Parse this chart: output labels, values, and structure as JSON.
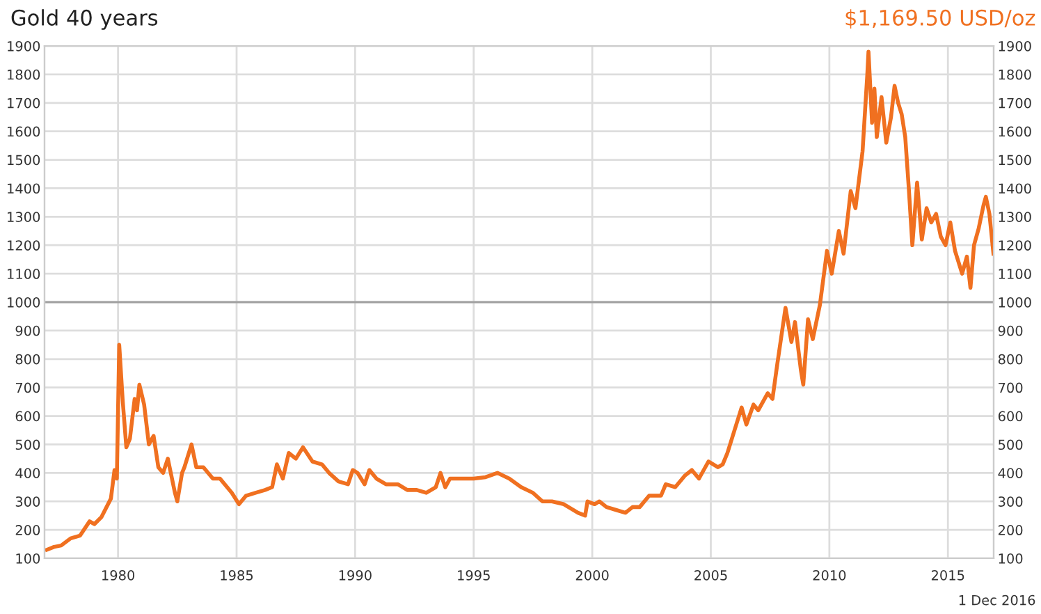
{
  "chart_data": {
    "type": "line",
    "title": "Gold 40 years",
    "annotations": [
      "$1,169.50 USD/oz",
      "1 Dec 2016"
    ],
    "x": [
      1977.0,
      1977.3,
      1977.6,
      1978.0,
      1978.4,
      1978.8,
      1979.0,
      1979.3,
      1979.7,
      1979.85,
      1979.95,
      1980.05,
      1980.2,
      1980.35,
      1980.5,
      1980.7,
      1980.8,
      1980.9,
      1981.1,
      1981.3,
      1981.5,
      1981.7,
      1981.9,
      1982.1,
      1982.4,
      1982.5,
      1982.7,
      1982.8,
      1983.1,
      1983.3,
      1983.6,
      1984.0,
      1984.3,
      1984.8,
      1985.1,
      1985.4,
      1985.8,
      1986.2,
      1986.5,
      1986.7,
      1986.95,
      1987.2,
      1987.5,
      1987.8,
      1988.2,
      1988.6,
      1988.9,
      1989.3,
      1989.7,
      1989.9,
      1990.1,
      1990.4,
      1990.6,
      1990.9,
      1991.3,
      1991.8,
      1992.2,
      1992.6,
      1993.0,
      1993.4,
      1993.6,
      1993.8,
      1994.0,
      1994.6,
      1995.0,
      1995.5,
      1996.0,
      1996.5,
      1997.0,
      1997.5,
      1997.9,
      1998.3,
      1998.8,
      1999.4,
      1999.7,
      1999.8,
      2000.1,
      2000.3,
      2000.6,
      2001.0,
      2001.4,
      2001.7,
      2002.0,
      2002.4,
      2002.9,
      2003.1,
      2003.5,
      2003.9,
      2004.2,
      2004.5,
      2004.9,
      2005.3,
      2005.5,
      2005.7,
      2006.0,
      2006.3,
      2006.5,
      2006.8,
      2007.0,
      2007.4,
      2007.6,
      2007.8,
      2008.15,
      2008.4,
      2008.55,
      2008.8,
      2008.9,
      2009.1,
      2009.3,
      2009.6,
      2009.9,
      2010.1,
      2010.4,
      2010.6,
      2010.9,
      2011.1,
      2011.4,
      2011.6,
      2011.65,
      2011.8,
      2011.9,
      2012.0,
      2012.2,
      2012.4,
      2012.6,
      2012.75,
      2012.9,
      2013.05,
      2013.2,
      2013.35,
      2013.5,
      2013.7,
      2013.9,
      2014.1,
      2014.3,
      2014.5,
      2014.7,
      2014.9,
      2015.1,
      2015.3,
      2015.6,
      2015.8,
      2015.95,
      2016.1,
      2016.3,
      2016.5,
      2016.6,
      2016.75,
      2016.92
    ],
    "series": [
      {
        "color": "#f07020",
        "values": [
          130,
          140,
          145,
          170,
          180,
          230,
          220,
          245,
          310,
          410,
          380,
          850,
          650,
          490,
          520,
          660,
          620,
          710,
          640,
          500,
          530,
          420,
          400,
          450,
          330,
          300,
          400,
          420,
          500,
          420,
          420,
          380,
          380,
          330,
          290,
          320,
          330,
          340,
          350,
          430,
          380,
          470,
          450,
          490,
          440,
          430,
          400,
          370,
          360,
          410,
          400,
          360,
          410,
          380,
          360,
          360,
          340,
          340,
          330,
          350,
          400,
          350,
          380,
          380,
          380,
          385,
          400,
          380,
          350,
          330,
          300,
          300,
          290,
          260,
          250,
          300,
          290,
          300,
          280,
          270,
          260,
          280,
          280,
          320,
          320,
          360,
          350,
          390,
          410,
          380,
          440,
          420,
          430,
          470,
          550,
          630,
          570,
          640,
          620,
          680,
          660,
          780,
          980,
          860,
          930,
          760,
          710,
          940,
          870,
          990,
          1180,
          1100,
          1250,
          1170,
          1390,
          1330,
          1530,
          1800,
          1880,
          1630,
          1750,
          1580,
          1720,
          1560,
          1650,
          1760,
          1700,
          1660,
          1580,
          1400,
          1200,
          1420,
          1220,
          1330,
          1280,
          1310,
          1230,
          1200,
          1280,
          1180,
          1100,
          1160,
          1050,
          1200,
          1260,
          1340,
          1370,
          1310,
          1170
        ]
      }
    ],
    "xlim": [
      1976.9,
      2016.93
    ],
    "xticks": [
      1980,
      1985,
      1990,
      1995,
      2000,
      2005,
      2010,
      2015
    ],
    "ylim": [
      100,
      1900
    ],
    "yticks": [
      100,
      200,
      300,
      400,
      500,
      600,
      700,
      800,
      900,
      1000,
      1100,
      1200,
      1300,
      1400,
      1500,
      1600,
      1700,
      1800,
      1900
    ],
    "y2lim": [
      100,
      1900
    ],
    "y2ticks": [
      100,
      200,
      300,
      400,
      500,
      600,
      700,
      800,
      900,
      1000,
      1100,
      1200,
      1300,
      1400,
      1500,
      1600,
      1700,
      1800,
      1900
    ],
    "ref_lines": [
      {
        "axis": "y",
        "value": 1000,
        "color": "#a0a0a0"
      }
    ],
    "grid": true,
    "marker": "none",
    "line_style": "solid"
  }
}
